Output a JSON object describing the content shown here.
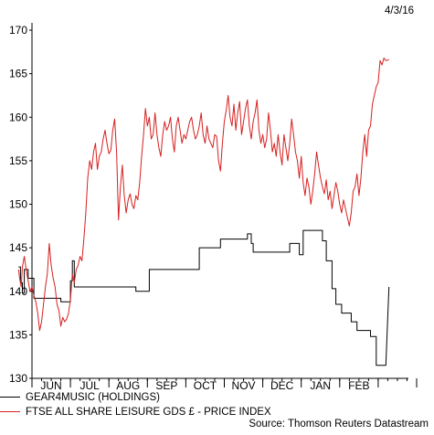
{
  "date_stamp": "4/3/16",
  "source": "Source: Thomson Reuters Datastream",
  "colors": {
    "series_1": "#000000",
    "series_2": "#d62020"
  },
  "chart_data": {
    "type": "line",
    "title": "",
    "xlabel": "",
    "ylabel": "",
    "ylim": [
      130,
      170
    ],
    "yticks": [
      130,
      135,
      140,
      145,
      150,
      155,
      160,
      165,
      170
    ],
    "x_range": [
      0,
      10
    ],
    "months": [
      {
        "label": "JUN",
        "start": 0
      },
      {
        "label": "JUL",
        "start": 1
      },
      {
        "label": "AUG",
        "start": 2
      },
      {
        "label": "SEP",
        "start": 3
      },
      {
        "label": "OCT",
        "start": 4
      },
      {
        "label": "NOV",
        "start": 5
      },
      {
        "label": "DEC",
        "start": 6
      },
      {
        "label": "JAN",
        "start": 7
      },
      {
        "label": "FEB",
        "start": 8
      },
      {
        "label": "",
        "start": 9
      }
    ],
    "grid": false,
    "legend_position": "bottom-left",
    "series": [
      {
        "name": "GEAR4MUSIC (HOLDINGS)",
        "step": true,
        "points": [
          [
            -0.35,
            142.8
          ],
          [
            -0.3,
            142.8
          ],
          [
            -0.3,
            141
          ],
          [
            -0.25,
            141
          ],
          [
            -0.25,
            139.8
          ],
          [
            -0.2,
            139.8
          ],
          [
            -0.2,
            142.5
          ],
          [
            -0.1,
            142.5
          ],
          [
            -0.1,
            141.5
          ],
          [
            0.05,
            141.5
          ],
          [
            0.05,
            139.2
          ],
          [
            0.75,
            139.2
          ],
          [
            0.75,
            138.8
          ],
          [
            1.0,
            138.8
          ],
          [
            1.0,
            141.2
          ],
          [
            1.05,
            141.2
          ],
          [
            1.05,
            143.5
          ],
          [
            1.1,
            143.5
          ],
          [
            1.1,
            140.5
          ],
          [
            2.5,
            140.5
          ],
          [
            2.5,
            140.5
          ],
          [
            2.7,
            140.5
          ],
          [
            2.7,
            140.0
          ],
          [
            3.05,
            140.0
          ],
          [
            3.05,
            142.5
          ],
          [
            4.35,
            142.5
          ],
          [
            4.35,
            145.0
          ],
          [
            4.9,
            145.0
          ],
          [
            4.9,
            146.0
          ],
          [
            5.6,
            146.0
          ],
          [
            5.6,
            146.6
          ],
          [
            5.7,
            146.6
          ],
          [
            5.7,
            145.5
          ],
          [
            5.75,
            145.5
          ],
          [
            5.75,
            144.5
          ],
          [
            6.7,
            144.5
          ],
          [
            6.7,
            145.5
          ],
          [
            6.95,
            145.5
          ],
          [
            6.95,
            144.2
          ],
          [
            7.05,
            144.2
          ],
          [
            7.05,
            147.0
          ],
          [
            7.55,
            147.0
          ],
          [
            7.55,
            145.8
          ],
          [
            7.65,
            145.8
          ],
          [
            7.65,
            143.5
          ],
          [
            7.8,
            143.5
          ],
          [
            7.8,
            140.3
          ],
          [
            7.9,
            140.3
          ],
          [
            7.9,
            138.5
          ],
          [
            8.05,
            138.5
          ],
          [
            8.05,
            137.5
          ],
          [
            8.3,
            137.5
          ],
          [
            8.3,
            136.5
          ],
          [
            8.45,
            136.5
          ],
          [
            8.45,
            135.5
          ],
          [
            8.8,
            135.5
          ],
          [
            8.8,
            134.8
          ],
          [
            8.95,
            134.8
          ],
          [
            8.95,
            131.5
          ],
          [
            9.2,
            131.5
          ],
          [
            9.28,
            140.5
          ]
        ]
      },
      {
        "name": "FTSE ALL SHARE LEISURE GDS £ - PRICE INDEX",
        "step": false,
        "points": [
          [
            -0.35,
            142.5
          ],
          [
            -0.32,
            141.5
          ],
          [
            -0.28,
            140.5
          ],
          [
            -0.25,
            142.8
          ],
          [
            -0.2,
            144.0
          ],
          [
            -0.15,
            142.5
          ],
          [
            -0.1,
            141.2
          ],
          [
            -0.05,
            140.0
          ],
          [
            0.0,
            140.5
          ],
          [
            0.05,
            139.5
          ],
          [
            0.1,
            138.8
          ],
          [
            0.15,
            137.5
          ],
          [
            0.2,
            135.5
          ],
          [
            0.25,
            136.5
          ],
          [
            0.3,
            138.5
          ],
          [
            0.35,
            140.5
          ],
          [
            0.4,
            142.0
          ],
          [
            0.45,
            145.5
          ],
          [
            0.5,
            143.0
          ],
          [
            0.55,
            141.5
          ],
          [
            0.6,
            140.5
          ],
          [
            0.65,
            138.5
          ],
          [
            0.7,
            137.8
          ],
          [
            0.75,
            136.0
          ],
          [
            0.8,
            137.0
          ],
          [
            0.85,
            136.5
          ],
          [
            0.9,
            136.8
          ],
          [
            0.95,
            137.5
          ],
          [
            1.0,
            139.0
          ],
          [
            1.05,
            142.0
          ],
          [
            1.1,
            141.0
          ],
          [
            1.15,
            142.5
          ],
          [
            1.2,
            143.0
          ],
          [
            1.25,
            144.0
          ],
          [
            1.3,
            143.5
          ],
          [
            1.35,
            146.0
          ],
          [
            1.4,
            149.0
          ],
          [
            1.45,
            153.0
          ],
          [
            1.5,
            155.0
          ],
          [
            1.55,
            154.0
          ],
          [
            1.6,
            156.0
          ],
          [
            1.65,
            157.0
          ],
          [
            1.7,
            154.0
          ],
          [
            1.75,
            155.5
          ],
          [
            1.8,
            156.0
          ],
          [
            1.85,
            157.5
          ],
          [
            1.9,
            158.5
          ],
          [
            1.95,
            157.0
          ],
          [
            2.0,
            155.8
          ],
          [
            2.05,
            156.2
          ],
          [
            2.1,
            158.5
          ],
          [
            2.15,
            159.8
          ],
          [
            2.2,
            156.0
          ],
          [
            2.25,
            148.2
          ],
          [
            2.3,
            152.0
          ],
          [
            2.35,
            154.5
          ],
          [
            2.4,
            151.0
          ],
          [
            2.45,
            149.0
          ],
          [
            2.5,
            150.5
          ],
          [
            2.55,
            151.2
          ],
          [
            2.6,
            150.0
          ],
          [
            2.65,
            149.5
          ],
          [
            2.7,
            151.0
          ],
          [
            2.75,
            150.5
          ],
          [
            2.8,
            152.5
          ],
          [
            2.85,
            155.5
          ],
          [
            2.9,
            158.0
          ],
          [
            2.95,
            161.0
          ],
          [
            3.0,
            159.0
          ],
          [
            3.05,
            160.0
          ],
          [
            3.1,
            157.5
          ],
          [
            3.15,
            158.0
          ],
          [
            3.2,
            160.5
          ],
          [
            3.25,
            158.0
          ],
          [
            3.3,
            156.5
          ],
          [
            3.35,
            155.5
          ],
          [
            3.4,
            158.0
          ],
          [
            3.45,
            159.5
          ],
          [
            3.5,
            158.5
          ],
          [
            3.55,
            159.0
          ],
          [
            3.6,
            160.0
          ],
          [
            3.65,
            157.5
          ],
          [
            3.7,
            156.0
          ],
          [
            3.75,
            159.0
          ],
          [
            3.8,
            160.0
          ],
          [
            3.85,
            158.5
          ],
          [
            3.9,
            157.0
          ],
          [
            3.95,
            158.0
          ],
          [
            4.0,
            157.5
          ],
          [
            4.05,
            158.5
          ],
          [
            4.1,
            159.5
          ],
          [
            4.15,
            160.0
          ],
          [
            4.2,
            158.5
          ],
          [
            4.25,
            157.5
          ],
          [
            4.3,
            158.0
          ],
          [
            4.35,
            159.0
          ],
          [
            4.4,
            160.5
          ],
          [
            4.45,
            158.0
          ],
          [
            4.5,
            157.0
          ],
          [
            4.55,
            159.0
          ],
          [
            4.6,
            157.5
          ],
          [
            4.65,
            157.0
          ],
          [
            4.7,
            156.5
          ],
          [
            4.75,
            158.0
          ],
          [
            4.8,
            157.8
          ],
          [
            4.85,
            155.0
          ],
          [
            4.9,
            153.8
          ],
          [
            4.95,
            157.0
          ],
          [
            5.0,
            159.5
          ],
          [
            5.05,
            160.8
          ],
          [
            5.1,
            162.5
          ],
          [
            5.15,
            160.0
          ],
          [
            5.2,
            159.0
          ],
          [
            5.25,
            161.5
          ],
          [
            5.3,
            158.5
          ],
          [
            5.35,
            160.5
          ],
          [
            5.4,
            161.8
          ],
          [
            5.45,
            158.0
          ],
          [
            5.5,
            159.5
          ],
          [
            5.55,
            161.0
          ],
          [
            5.6,
            162.0
          ],
          [
            5.65,
            159.0
          ],
          [
            5.7,
            157.5
          ],
          [
            5.75,
            159.5
          ],
          [
            5.8,
            160.5
          ],
          [
            5.85,
            162.0
          ],
          [
            5.9,
            158.5
          ],
          [
            5.95,
            157.0
          ],
          [
            6.0,
            158.0
          ],
          [
            6.05,
            156.5
          ],
          [
            6.1,
            157.5
          ],
          [
            6.15,
            160.5
          ],
          [
            6.2,
            158.5
          ],
          [
            6.25,
            156.0
          ],
          [
            6.3,
            157.0
          ],
          [
            6.35,
            155.5
          ],
          [
            6.4,
            158.0
          ],
          [
            6.45,
            156.0
          ],
          [
            6.5,
            154.5
          ],
          [
            6.55,
            158.0
          ],
          [
            6.6,
            156.5
          ],
          [
            6.65,
            155.0
          ],
          [
            6.7,
            157.0
          ],
          [
            6.75,
            159.8
          ],
          [
            6.8,
            158.0
          ],
          [
            6.85,
            156.0
          ],
          [
            6.9,
            155.0
          ],
          [
            6.95,
            153.0
          ],
          [
            7.0,
            155.5
          ],
          [
            7.05,
            152.5
          ],
          [
            7.1,
            151.0
          ],
          [
            7.15,
            153.0
          ],
          [
            7.2,
            152.0
          ],
          [
            7.25,
            150.0
          ],
          [
            7.3,
            151.5
          ],
          [
            7.35,
            153.5
          ],
          [
            7.4,
            156.0
          ],
          [
            7.45,
            154.5
          ],
          [
            7.5,
            153.0
          ],
          [
            7.55,
            152.0
          ],
          [
            7.6,
            151.2
          ],
          [
            7.65,
            152.8
          ],
          [
            7.7,
            150.5
          ],
          [
            7.75,
            151.5
          ],
          [
            7.8,
            149.5
          ],
          [
            7.85,
            151.0
          ],
          [
            7.9,
            152.5
          ],
          [
            7.95,
            151.5
          ],
          [
            8.0,
            150.0
          ],
          [
            8.05,
            149.0
          ],
          [
            8.1,
            150.5
          ],
          [
            8.15,
            149.5
          ],
          [
            8.2,
            148.5
          ],
          [
            8.25,
            147.5
          ],
          [
            8.3,
            149.0
          ],
          [
            8.35,
            151.5
          ],
          [
            8.4,
            152.0
          ],
          [
            8.45,
            153.5
          ],
          [
            8.5,
            151.0
          ],
          [
            8.55,
            153.0
          ],
          [
            8.6,
            156.0
          ],
          [
            8.65,
            158.0
          ],
          [
            8.7,
            155.5
          ],
          [
            8.75,
            158.5
          ],
          [
            8.8,
            159.0
          ],
          [
            8.85,
            161.5
          ],
          [
            8.9,
            162.5
          ],
          [
            8.95,
            163.5
          ],
          [
            9.0,
            164.0
          ],
          [
            9.05,
            166.5
          ],
          [
            9.1,
            166.0
          ],
          [
            9.15,
            166.8
          ],
          [
            9.2,
            166.5
          ],
          [
            9.28,
            166.6
          ]
        ]
      }
    ]
  }
}
